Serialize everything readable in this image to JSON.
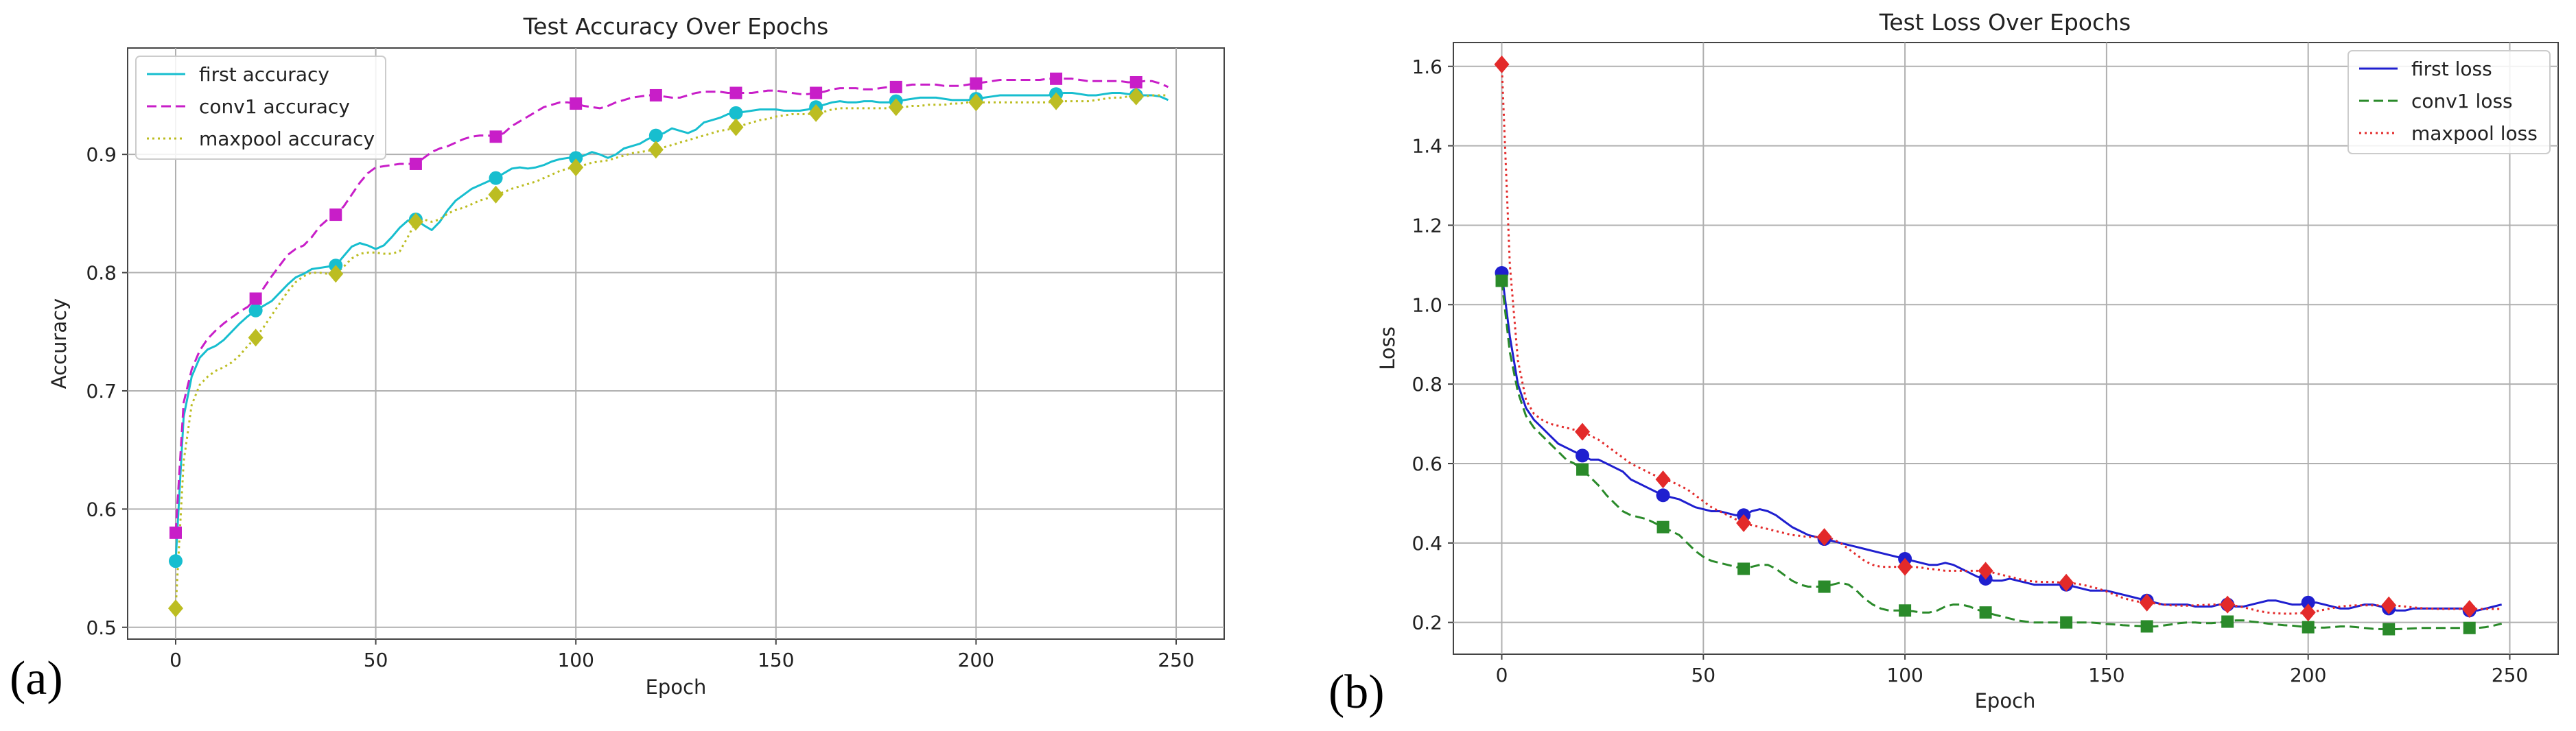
{
  "panels": {
    "a": "(a)",
    "b": "(b)"
  },
  "chart_data": [
    {
      "type": "line",
      "title": "Test Accuracy Over Epochs",
      "xlabel": "Epoch",
      "ylabel": "Accuracy",
      "xlim": [
        -12,
        262
      ],
      "ylim": [
        0.49,
        0.99
      ],
      "xticks": [
        0,
        50,
        100,
        150,
        200,
        250
      ],
      "yticks": [
        0.5,
        0.6,
        0.7,
        0.8,
        0.9
      ],
      "grid": true,
      "legend_position": "top-left",
      "x": [
        0,
        2,
        4,
        6,
        8,
        10,
        12,
        14,
        16,
        18,
        20,
        22,
        24,
        26,
        28,
        30,
        32,
        34,
        36,
        38,
        40,
        42,
        44,
        46,
        48,
        50,
        52,
        54,
        56,
        58,
        60,
        62,
        64,
        66,
        68,
        70,
        72,
        74,
        76,
        78,
        80,
        82,
        84,
        86,
        88,
        90,
        92,
        94,
        96,
        98,
        100,
        102,
        104,
        106,
        108,
        110,
        112,
        114,
        116,
        118,
        120,
        122,
        124,
        126,
        128,
        130,
        132,
        134,
        136,
        138,
        140,
        142,
        144,
        146,
        148,
        150,
        152,
        154,
        156,
        158,
        160,
        162,
        164,
        166,
        168,
        170,
        172,
        174,
        176,
        178,
        180,
        182,
        184,
        186,
        188,
        190,
        192,
        194,
        196,
        198,
        200,
        202,
        204,
        206,
        208,
        210,
        212,
        214,
        216,
        218,
        220,
        222,
        224,
        226,
        228,
        230,
        232,
        234,
        236,
        238,
        240,
        242,
        244,
        246,
        248
      ],
      "marker_x": [
        0,
        20,
        40,
        60,
        80,
        100,
        120,
        140,
        160,
        180,
        200,
        220,
        240
      ],
      "series": [
        {
          "name": "first accuracy",
          "color": "#17becf",
          "dash": "solid",
          "marker": "circle",
          "values": [
            0.556,
            0.678,
            0.712,
            0.728,
            0.735,
            0.738,
            0.743,
            0.75,
            0.757,
            0.763,
            0.768,
            0.772,
            0.776,
            0.783,
            0.79,
            0.796,
            0.799,
            0.803,
            0.804,
            0.805,
            0.806,
            0.814,
            0.822,
            0.825,
            0.823,
            0.82,
            0.823,
            0.83,
            0.838,
            0.844,
            0.845,
            0.84,
            0.836,
            0.843,
            0.853,
            0.861,
            0.866,
            0.871,
            0.874,
            0.877,
            0.88,
            0.884,
            0.888,
            0.889,
            0.888,
            0.889,
            0.891,
            0.894,
            0.896,
            0.897,
            0.897,
            0.899,
            0.902,
            0.9,
            0.897,
            0.9,
            0.905,
            0.907,
            0.909,
            0.913,
            0.916,
            0.918,
            0.922,
            0.92,
            0.918,
            0.921,
            0.927,
            0.929,
            0.931,
            0.934,
            0.935,
            0.936,
            0.937,
            0.938,
            0.938,
            0.938,
            0.937,
            0.937,
            0.937,
            0.938,
            0.94,
            0.942,
            0.944,
            0.945,
            0.944,
            0.944,
            0.945,
            0.945,
            0.944,
            0.944,
            0.945,
            0.946,
            0.947,
            0.948,
            0.948,
            0.948,
            0.947,
            0.946,
            0.946,
            0.946,
            0.947,
            0.948,
            0.949,
            0.95,
            0.95,
            0.95,
            0.95,
            0.95,
            0.95,
            0.95,
            0.951,
            0.952,
            0.952,
            0.951,
            0.95,
            0.95,
            0.951,
            0.952,
            0.952,
            0.951,
            0.95,
            0.95,
            0.95,
            0.949,
            0.946
          ]
        },
        {
          "name": "conv1 accuracy",
          "color": "#c81ec8",
          "dash": "dashed",
          "marker": "square",
          "values": [
            0.58,
            0.69,
            0.718,
            0.734,
            0.744,
            0.751,
            0.757,
            0.762,
            0.767,
            0.771,
            0.778,
            0.787,
            0.797,
            0.806,
            0.815,
            0.82,
            0.823,
            0.83,
            0.839,
            0.845,
            0.849,
            0.856,
            0.866,
            0.876,
            0.884,
            0.889,
            0.89,
            0.891,
            0.892,
            0.892,
            0.892,
            0.897,
            0.902,
            0.905,
            0.907,
            0.91,
            0.913,
            0.915,
            0.916,
            0.916,
            0.915,
            0.918,
            0.924,
            0.928,
            0.932,
            0.936,
            0.94,
            0.942,
            0.944,
            0.944,
            0.943,
            0.941,
            0.94,
            0.939,
            0.941,
            0.944,
            0.946,
            0.948,
            0.949,
            0.95,
            0.95,
            0.949,
            0.948,
            0.948,
            0.95,
            0.952,
            0.953,
            0.953,
            0.953,
            0.952,
            0.952,
            0.952,
            0.952,
            0.953,
            0.954,
            0.954,
            0.953,
            0.952,
            0.951,
            0.951,
            0.952,
            0.953,
            0.955,
            0.956,
            0.956,
            0.956,
            0.955,
            0.955,
            0.956,
            0.957,
            0.957,
            0.958,
            0.959,
            0.959,
            0.959,
            0.959,
            0.958,
            0.958,
            0.958,
            0.959,
            0.96,
            0.961,
            0.962,
            0.963,
            0.963,
            0.963,
            0.963,
            0.963,
            0.963,
            0.964,
            0.964,
            0.964,
            0.964,
            0.963,
            0.962,
            0.962,
            0.962,
            0.962,
            0.962,
            0.961,
            0.961,
            0.962,
            0.962,
            0.96,
            0.957
          ]
        },
        {
          "name": "maxpool accuracy",
          "color": "#bcbd22",
          "dash": "dotted",
          "marker": "diamond",
          "values": [
            0.516,
            0.64,
            0.688,
            0.705,
            0.712,
            0.717,
            0.72,
            0.724,
            0.73,
            0.738,
            0.745,
            0.754,
            0.764,
            0.774,
            0.784,
            0.792,
            0.797,
            0.8,
            0.8,
            0.799,
            0.799,
            0.805,
            0.812,
            0.816,
            0.817,
            0.817,
            0.816,
            0.816,
            0.818,
            0.83,
            0.843,
            0.845,
            0.843,
            0.845,
            0.85,
            0.853,
            0.855,
            0.858,
            0.861,
            0.863,
            0.866,
            0.868,
            0.871,
            0.873,
            0.875,
            0.877,
            0.88,
            0.883,
            0.886,
            0.888,
            0.889,
            0.891,
            0.893,
            0.894,
            0.895,
            0.897,
            0.899,
            0.901,
            0.902,
            0.903,
            0.904,
            0.906,
            0.908,
            0.91,
            0.912,
            0.914,
            0.916,
            0.918,
            0.92,
            0.921,
            0.923,
            0.925,
            0.927,
            0.929,
            0.93,
            0.932,
            0.933,
            0.934,
            0.934,
            0.934,
            0.935,
            0.936,
            0.938,
            0.939,
            0.939,
            0.939,
            0.939,
            0.939,
            0.939,
            0.939,
            0.94,
            0.94,
            0.941,
            0.941,
            0.942,
            0.942,
            0.942,
            0.943,
            0.943,
            0.944,
            0.944,
            0.944,
            0.944,
            0.944,
            0.944,
            0.944,
            0.944,
            0.944,
            0.944,
            0.944,
            0.945,
            0.945,
            0.945,
            0.945,
            0.945,
            0.946,
            0.947,
            0.948,
            0.948,
            0.949,
            0.949,
            0.949,
            0.95,
            0.95,
            0.95
          ]
        }
      ]
    },
    {
      "type": "line",
      "title": "Test Loss Over Epochs",
      "xlabel": "Epoch",
      "ylabel": "Loss",
      "xlim": [
        -12,
        262
      ],
      "ylim": [
        0.12,
        1.66
      ],
      "xticks": [
        0,
        50,
        100,
        150,
        200,
        250
      ],
      "yticks": [
        0.2,
        0.4,
        0.6,
        0.8,
        1.0,
        1.2,
        1.4,
        1.6
      ],
      "grid": true,
      "legend_position": "top-right",
      "x": [
        0,
        2,
        4,
        6,
        8,
        10,
        12,
        14,
        16,
        18,
        20,
        22,
        24,
        26,
        28,
        30,
        32,
        34,
        36,
        38,
        40,
        42,
        44,
        46,
        48,
        50,
        52,
        54,
        56,
        58,
        60,
        62,
        64,
        66,
        68,
        70,
        72,
        74,
        76,
        78,
        80,
        82,
        84,
        86,
        88,
        90,
        92,
        94,
        96,
        98,
        100,
        102,
        104,
        106,
        108,
        110,
        112,
        114,
        116,
        118,
        120,
        122,
        124,
        126,
        128,
        130,
        132,
        134,
        136,
        138,
        140,
        142,
        144,
        146,
        148,
        150,
        152,
        154,
        156,
        158,
        160,
        162,
        164,
        166,
        168,
        170,
        172,
        174,
        176,
        178,
        180,
        182,
        184,
        186,
        188,
        190,
        192,
        194,
        196,
        198,
        200,
        202,
        204,
        206,
        208,
        210,
        212,
        214,
        216,
        218,
        220,
        222,
        224,
        226,
        228,
        230,
        232,
        234,
        236,
        238,
        240,
        242,
        244,
        246,
        248
      ],
      "marker_x": [
        0,
        20,
        40,
        60,
        80,
        100,
        120,
        140,
        160,
        180,
        200,
        220,
        240
      ],
      "series": [
        {
          "name": "first loss",
          "color": "#1f1fcf",
          "dash": "solid",
          "marker": "circle",
          "values": [
            1.08,
            0.92,
            0.8,
            0.74,
            0.71,
            0.69,
            0.67,
            0.65,
            0.64,
            0.63,
            0.62,
            0.61,
            0.61,
            0.6,
            0.59,
            0.58,
            0.56,
            0.55,
            0.54,
            0.53,
            0.52,
            0.515,
            0.51,
            0.5,
            0.49,
            0.485,
            0.48,
            0.48,
            0.475,
            0.47,
            0.47,
            0.48,
            0.485,
            0.48,
            0.47,
            0.455,
            0.44,
            0.43,
            0.42,
            0.415,
            0.41,
            0.405,
            0.4,
            0.395,
            0.39,
            0.385,
            0.38,
            0.375,
            0.37,
            0.365,
            0.36,
            0.355,
            0.35,
            0.345,
            0.345,
            0.35,
            0.345,
            0.335,
            0.325,
            0.315,
            0.31,
            0.305,
            0.305,
            0.31,
            0.305,
            0.3,
            0.295,
            0.295,
            0.295,
            0.295,
            0.295,
            0.29,
            0.285,
            0.28,
            0.28,
            0.28,
            0.275,
            0.27,
            0.265,
            0.26,
            0.255,
            0.25,
            0.245,
            0.245,
            0.245,
            0.245,
            0.24,
            0.24,
            0.24,
            0.245,
            0.245,
            0.24,
            0.24,
            0.245,
            0.25,
            0.255,
            0.255,
            0.25,
            0.245,
            0.245,
            0.25,
            0.25,
            0.245,
            0.24,
            0.235,
            0.235,
            0.24,
            0.245,
            0.245,
            0.24,
            0.235,
            0.23,
            0.23,
            0.235,
            0.235,
            0.235,
            0.235,
            0.235,
            0.235,
            0.235,
            0.23,
            0.23,
            0.235,
            0.24,
            0.245
          ]
        },
        {
          "name": "conv1 loss",
          "color": "#2a8a2a",
          "dash": "dashed",
          "marker": "square",
          "values": [
            1.06,
            0.88,
            0.78,
            0.72,
            0.69,
            0.67,
            0.65,
            0.63,
            0.61,
            0.6,
            0.585,
            0.565,
            0.545,
            0.52,
            0.5,
            0.48,
            0.47,
            0.465,
            0.46,
            0.45,
            0.44,
            0.43,
            0.42,
            0.4,
            0.38,
            0.365,
            0.355,
            0.35,
            0.345,
            0.34,
            0.335,
            0.34,
            0.345,
            0.345,
            0.335,
            0.32,
            0.305,
            0.295,
            0.29,
            0.29,
            0.29,
            0.295,
            0.3,
            0.295,
            0.28,
            0.26,
            0.245,
            0.235,
            0.23,
            0.23,
            0.23,
            0.228,
            0.225,
            0.225,
            0.23,
            0.24,
            0.245,
            0.245,
            0.24,
            0.232,
            0.225,
            0.22,
            0.215,
            0.21,
            0.205,
            0.202,
            0.2,
            0.2,
            0.2,
            0.2,
            0.2,
            0.2,
            0.2,
            0.2,
            0.198,
            0.196,
            0.195,
            0.193,
            0.192,
            0.191,
            0.19,
            0.19,
            0.192,
            0.195,
            0.198,
            0.2,
            0.2,
            0.198,
            0.198,
            0.2,
            0.202,
            0.205,
            0.205,
            0.202,
            0.2,
            0.197,
            0.195,
            0.193,
            0.192,
            0.19,
            0.188,
            0.187,
            0.187,
            0.188,
            0.19,
            0.19,
            0.188,
            0.186,
            0.184,
            0.183,
            0.183,
            0.183,
            0.184,
            0.185,
            0.186,
            0.186,
            0.186,
            0.186,
            0.186,
            0.186,
            0.186,
            0.186,
            0.188,
            0.192,
            0.197
          ]
        },
        {
          "name": "maxpool loss",
          "color": "#e32a2a",
          "dash": "dotted",
          "marker": "diamond",
          "values": [
            1.605,
            1.1,
            0.86,
            0.76,
            0.725,
            0.71,
            0.7,
            0.695,
            0.69,
            0.685,
            0.68,
            0.67,
            0.66,
            0.645,
            0.63,
            0.615,
            0.6,
            0.59,
            0.58,
            0.57,
            0.56,
            0.555,
            0.545,
            0.535,
            0.52,
            0.505,
            0.49,
            0.48,
            0.47,
            0.46,
            0.45,
            0.445,
            0.44,
            0.435,
            0.43,
            0.425,
            0.42,
            0.418,
            0.415,
            0.415,
            0.415,
            0.41,
            0.4,
            0.385,
            0.37,
            0.355,
            0.345,
            0.34,
            0.34,
            0.34,
            0.34,
            0.34,
            0.338,
            0.335,
            0.333,
            0.33,
            0.33,
            0.33,
            0.33,
            0.33,
            0.33,
            0.325,
            0.32,
            0.315,
            0.31,
            0.305,
            0.303,
            0.302,
            0.302,
            0.301,
            0.3,
            0.298,
            0.295,
            0.29,
            0.285,
            0.278,
            0.27,
            0.262,
            0.256,
            0.252,
            0.25,
            0.248,
            0.245,
            0.243,
            0.242,
            0.242,
            0.243,
            0.244,
            0.245,
            0.245,
            0.245,
            0.242,
            0.238,
            0.233,
            0.228,
            0.225,
            0.223,
            0.222,
            0.222,
            0.223,
            0.225,
            0.228,
            0.232,
            0.236,
            0.24,
            0.242,
            0.243,
            0.243,
            0.243,
            0.243,
            0.243,
            0.242,
            0.24,
            0.238,
            0.236,
            0.235,
            0.234,
            0.234,
            0.234,
            0.234,
            0.234,
            0.234,
            0.234,
            0.234,
            0.234
          ]
        }
      ]
    }
  ]
}
